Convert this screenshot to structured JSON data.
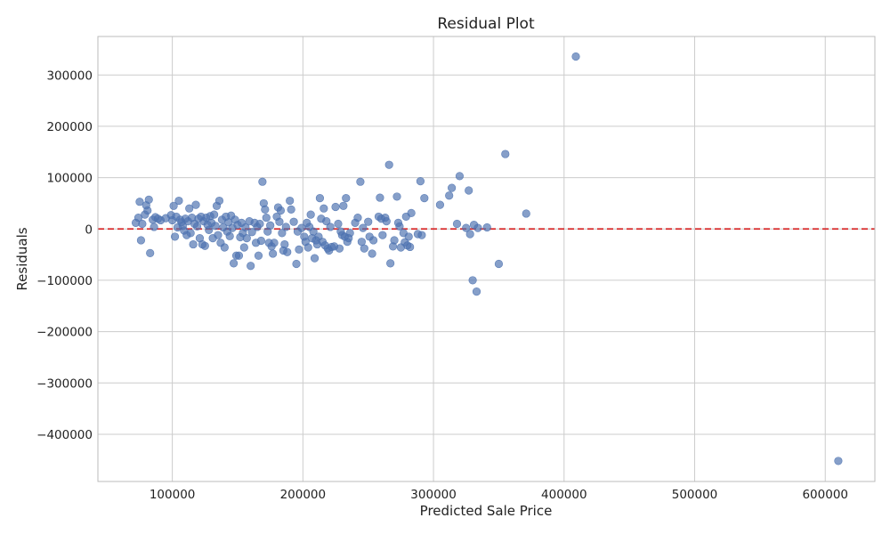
{
  "chart_data": {
    "type": "scatter",
    "title": "Residual Plot",
    "xlabel": "Predicted Sale Price",
    "ylabel": "Residuals",
    "xlim": [
      43000,
      638000
    ],
    "ylim": [
      -492000,
      375000
    ],
    "x_ticks": [
      100000,
      200000,
      300000,
      400000,
      500000,
      600000
    ],
    "y_ticks": [
      300000,
      200000,
      100000,
      0,
      -100000,
      -200000,
      -300000,
      -400000
    ],
    "x_tick_labels": [
      "100000",
      "200000",
      "300000",
      "400000",
      "500000",
      "600000"
    ],
    "y_tick_labels": [
      "300000",
      "200000",
      "100000",
      "0",
      "−100000",
      "−200000",
      "−300000",
      "−400000"
    ],
    "grid": true,
    "reference_line": {
      "y": 0,
      "style": "dashed",
      "color": "#d62728"
    },
    "colors": {
      "point": "#4c72b0",
      "reference_line": "#d62728",
      "grid": "#cccccc",
      "axes": "#bbbbbb"
    },
    "points": [
      [
        72000,
        12000
      ],
      [
        74000,
        22000
      ],
      [
        75000,
        53000
      ],
      [
        76000,
        -22000
      ],
      [
        77000,
        10000
      ],
      [
        79000,
        28000
      ],
      [
        80000,
        46000
      ],
      [
        81000,
        36000
      ],
      [
        82000,
        57000
      ],
      [
        83000,
        -47000
      ],
      [
        85000,
        18000
      ],
      [
        86000,
        4000
      ],
      [
        87000,
        23000
      ],
      [
        89000,
        20000
      ],
      [
        91000,
        17000
      ],
      [
        95000,
        21000
      ],
      [
        99000,
        27000
      ],
      [
        100000,
        17000
      ],
      [
        101000,
        45000
      ],
      [
        102000,
        -15000
      ],
      [
        103000,
        24000
      ],
      [
        104000,
        3000
      ],
      [
        105000,
        55000
      ],
      [
        106000,
        18000
      ],
      [
        107000,
        13000
      ],
      [
        108000,
        6000
      ],
      [
        109000,
        -3000
      ],
      [
        110000,
        20000
      ],
      [
        111000,
        -12000
      ],
      [
        112000,
        15000
      ],
      [
        113000,
        40000
      ],
      [
        114000,
        -8000
      ],
      [
        115000,
        22000
      ],
      [
        116000,
        -30000
      ],
      [
        117000,
        10000
      ],
      [
        118000,
        47000
      ],
      [
        119000,
        5000
      ],
      [
        120000,
        20000
      ],
      [
        121000,
        -18000
      ],
      [
        122000,
        24000
      ],
      [
        123000,
        -30000
      ],
      [
        124000,
        15000
      ],
      [
        125000,
        -33000
      ],
      [
        126000,
        22000
      ],
      [
        127000,
        8000
      ],
      [
        128000,
        -2000
      ],
      [
        129000,
        25000
      ],
      [
        130000,
        12000
      ],
      [
        131000,
        -18000
      ],
      [
        132000,
        28000
      ],
      [
        133000,
        6000
      ],
      [
        134000,
        45000
      ],
      [
        135000,
        -12000
      ],
      [
        136000,
        55000
      ],
      [
        137000,
        -27000
      ],
      [
        138000,
        18000
      ],
      [
        139000,
        3000
      ],
      [
        140000,
        -36000
      ],
      [
        141000,
        24000
      ],
      [
        142000,
        -5000
      ],
      [
        143000,
        13000
      ],
      [
        144000,
        -14000
      ],
      [
        145000,
        26000
      ],
      [
        146000,
        2000
      ],
      [
        147000,
        -67000
      ],
      [
        148000,
        18000
      ],
      [
        149000,
        -52000
      ],
      [
        150000,
        8000
      ],
      [
        151000,
        -52000
      ],
      [
        152000,
        -16000
      ],
      [
        153000,
        12000
      ],
      [
        154000,
        -8000
      ],
      [
        155000,
        -36000
      ],
      [
        156000,
        3000
      ],
      [
        157000,
        -18000
      ],
      [
        159000,
        15000
      ],
      [
        160000,
        -72000
      ],
      [
        161000,
        -6000
      ],
      [
        163000,
        12000
      ],
      [
        164000,
        -27000
      ],
      [
        165000,
        4000
      ],
      [
        166000,
        -52000
      ],
      [
        167000,
        10000
      ],
      [
        168000,
        -23000
      ],
      [
        169000,
        92000
      ],
      [
        170000,
        50000
      ],
      [
        171000,
        38000
      ],
      [
        172000,
        22000
      ],
      [
        173000,
        -5000
      ],
      [
        174000,
        -27000
      ],
      [
        175000,
        7000
      ],
      [
        176000,
        -34000
      ],
      [
        177000,
        -48000
      ],
      [
        178000,
        -27000
      ],
      [
        180000,
        24000
      ],
      [
        181000,
        42000
      ],
      [
        182000,
        14000
      ],
      [
        183000,
        36000
      ],
      [
        184000,
        -8000
      ],
      [
        185000,
        -42000
      ],
      [
        186000,
        -30000
      ],
      [
        187000,
        4000
      ],
      [
        188000,
        -45000
      ],
      [
        190000,
        55000
      ],
      [
        191000,
        38000
      ],
      [
        193000,
        14000
      ],
      [
        195000,
        -68000
      ],
      [
        196000,
        -5000
      ],
      [
        197000,
        -40000
      ],
      [
        199000,
        2000
      ],
      [
        201000,
        -15000
      ],
      [
        202000,
        -25000
      ],
      [
        203000,
        12000
      ],
      [
        204000,
        -36000
      ],
      [
        205000,
        4000
      ],
      [
        206000,
        28000
      ],
      [
        207000,
        -18000
      ],
      [
        208000,
        -5000
      ],
      [
        209000,
        -57000
      ],
      [
        210000,
        -22000
      ],
      [
        211000,
        -30000
      ],
      [
        212000,
        -15000
      ],
      [
        213000,
        60000
      ],
      [
        214000,
        20000
      ],
      [
        215000,
        -25000
      ],
      [
        216000,
        40000
      ],
      [
        217000,
        -32000
      ],
      [
        218000,
        15000
      ],
      [
        219000,
        -38000
      ],
      [
        220000,
        -42000
      ],
      [
        221000,
        4000
      ],
      [
        222000,
        -35000
      ],
      [
        224000,
        -34000
      ],
      [
        225000,
        43000
      ],
      [
        227000,
        10000
      ],
      [
        228000,
        -38000
      ],
      [
        229000,
        -5000
      ],
      [
        230000,
        -12000
      ],
      [
        231000,
        45000
      ],
      [
        232000,
        -15000
      ],
      [
        233000,
        60000
      ],
      [
        234000,
        -25000
      ],
      [
        235000,
        -18000
      ],
      [
        236000,
        -8000
      ],
      [
        240000,
        12000
      ],
      [
        242000,
        22000
      ],
      [
        244000,
        92000
      ],
      [
        245000,
        -25000
      ],
      [
        246000,
        2000
      ],
      [
        247000,
        -38000
      ],
      [
        250000,
        14000
      ],
      [
        251000,
        -15000
      ],
      [
        253000,
        -48000
      ],
      [
        254000,
        -22000
      ],
      [
        258000,
        24000
      ],
      [
        259000,
        61000
      ],
      [
        260000,
        20000
      ],
      [
        261000,
        -12000
      ],
      [
        263000,
        22000
      ],
      [
        264000,
        15000
      ],
      [
        266000,
        125000
      ],
      [
        267000,
        -67000
      ],
      [
        269000,
        -34000
      ],
      [
        270000,
        -22000
      ],
      [
        272000,
        63000
      ],
      [
        273000,
        12000
      ],
      [
        274000,
        5000
      ],
      [
        275000,
        -36000
      ],
      [
        277000,
        -8000
      ],
      [
        278000,
        -26000
      ],
      [
        279000,
        24000
      ],
      [
        280000,
        -32000
      ],
      [
        281000,
        -15000
      ],
      [
        282000,
        -35000
      ],
      [
        283000,
        31000
      ],
      [
        288000,
        -10000
      ],
      [
        290000,
        93000
      ],
      [
        291000,
        -12000
      ],
      [
        293000,
        60000
      ],
      [
        305000,
        47000
      ],
      [
        312000,
        65000
      ],
      [
        314000,
        80000
      ],
      [
        318000,
        10000
      ],
      [
        320000,
        103000
      ],
      [
        325000,
        2000
      ],
      [
        327000,
        75000
      ],
      [
        328000,
        -10000
      ],
      [
        330000,
        -100000
      ],
      [
        331000,
        8000
      ],
      [
        333000,
        -122000
      ],
      [
        334000,
        2000
      ],
      [
        341000,
        3000
      ],
      [
        350000,
        -68000
      ],
      [
        355000,
        146000
      ],
      [
        371000,
        30000
      ],
      [
        409000,
        336000
      ],
      [
        610000,
        -452000
      ]
    ]
  }
}
